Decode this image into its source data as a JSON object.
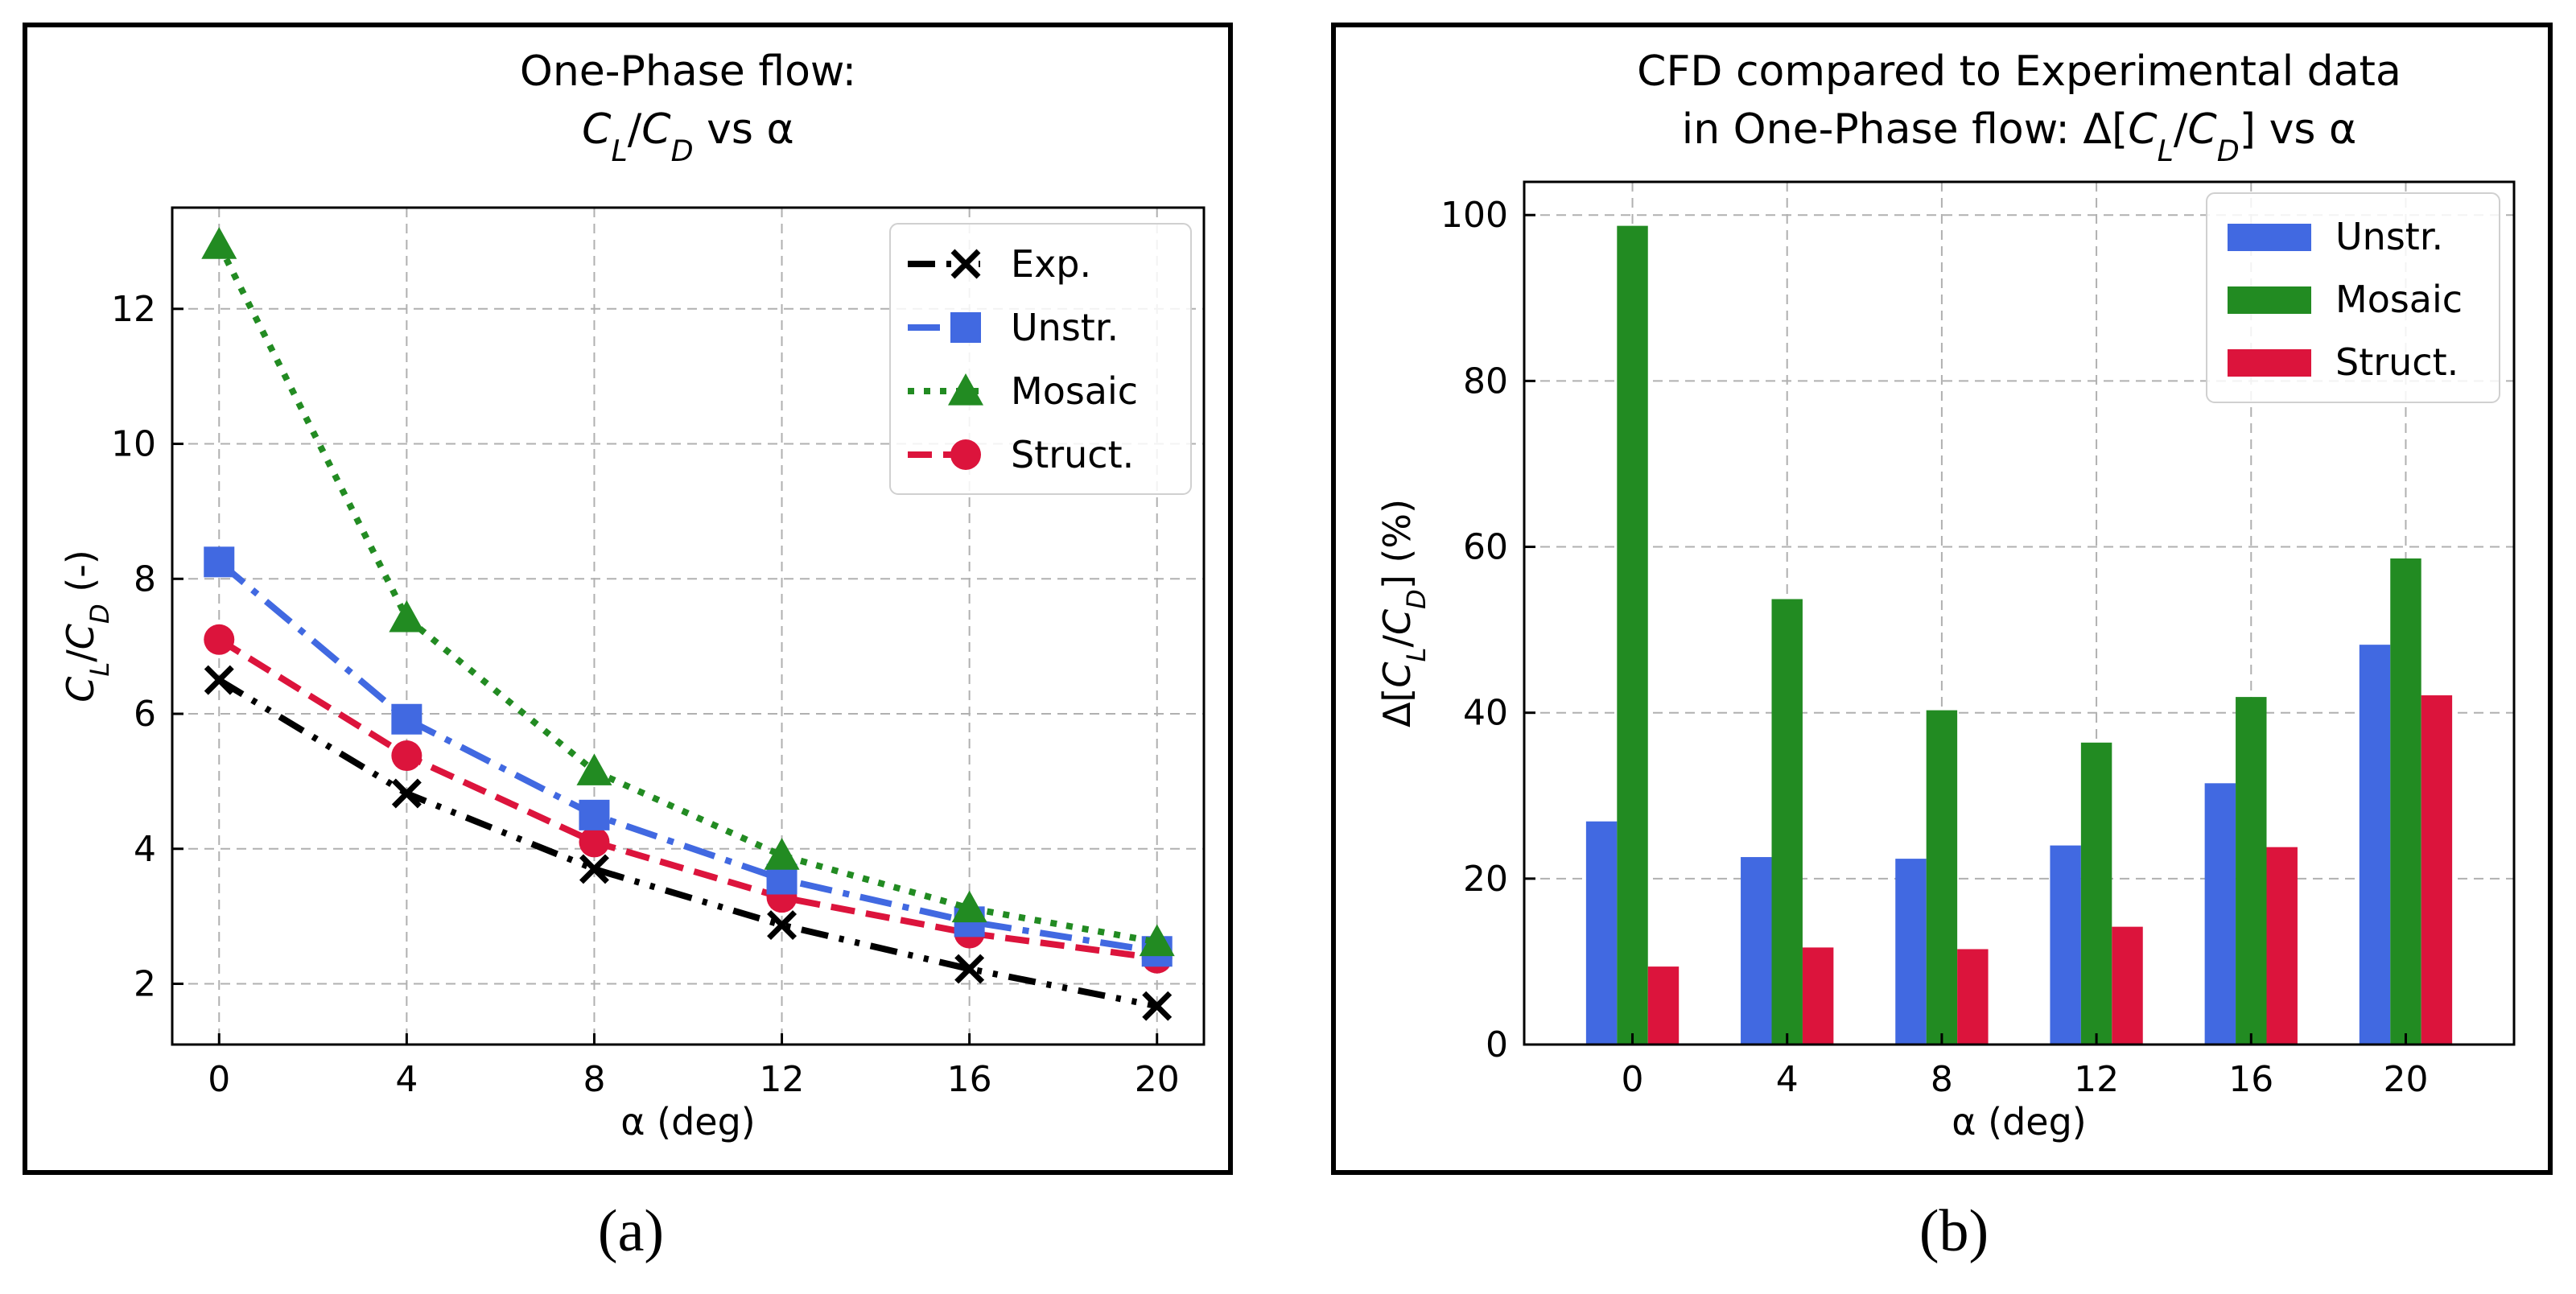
{
  "chart_data": [
    {
      "type": "line",
      "panel_caption": "(a)",
      "title_line1": "One-Phase flow:",
      "title_line2": "C_L/C_D vs α",
      "xlabel": "α (deg)",
      "ylabel": "C_L/C_D (-)",
      "x": [
        0,
        4,
        8,
        12,
        16,
        20
      ],
      "xticks": [
        0,
        4,
        8,
        12,
        16,
        20
      ],
      "yticks": [
        2,
        4,
        6,
        8,
        10,
        12
      ],
      "xlim": [
        -1,
        21
      ],
      "ylim": [
        1.1,
        13.5
      ],
      "grid": true,
      "legend_position": "top-right",
      "series": [
        {
          "name": "Exp.",
          "values": [
            6.5,
            4.82,
            3.7,
            2.87,
            2.22,
            1.67
          ],
          "color": "#000000",
          "marker": "x",
          "dash": "dashdotdot"
        },
        {
          "name": "Unstr.",
          "values": [
            8.25,
            5.92,
            4.5,
            3.55,
            2.92,
            2.48
          ],
          "color": "#4169e1",
          "marker": "square",
          "dash": "dashdot"
        },
        {
          "name": "Mosaic",
          "values": [
            12.95,
            7.42,
            5.15,
            3.9,
            3.12,
            2.62
          ],
          "color": "#228b22",
          "marker": "triangle",
          "dash": "dotted"
        },
        {
          "name": "Struct.",
          "values": [
            7.1,
            5.38,
            4.1,
            3.28,
            2.75,
            2.38
          ],
          "color": "#dc143c",
          "marker": "circle",
          "dash": "dashed"
        }
      ]
    },
    {
      "type": "bar",
      "panel_caption": "(b)",
      "title_line1": "CFD compared to Experimental data",
      "title_line2": "in One-Phase flow: Δ[C_L/C_D] vs α",
      "xlabel": "α (deg)",
      "ylabel": "Δ[C_L/C_D] (%)",
      "categories": [
        "0",
        "4",
        "8",
        "12",
        "16",
        "20"
      ],
      "yticks": [
        0,
        20,
        40,
        60,
        80,
        100
      ],
      "ylim": [
        0,
        104
      ],
      "grid": true,
      "legend_position": "top-right",
      "series": [
        {
          "name": "Unstr.",
          "values": [
            26.9,
            22.6,
            22.4,
            24.0,
            31.5,
            48.2
          ],
          "color": "#4169e1"
        },
        {
          "name": "Mosaic",
          "values": [
            98.7,
            53.7,
            40.3,
            36.4,
            41.9,
            58.6
          ],
          "color": "#228b22"
        },
        {
          "name": "Struct.",
          "values": [
            9.4,
            11.7,
            11.5,
            14.2,
            23.8,
            42.1
          ],
          "color": "#dc143c"
        }
      ]
    }
  ]
}
